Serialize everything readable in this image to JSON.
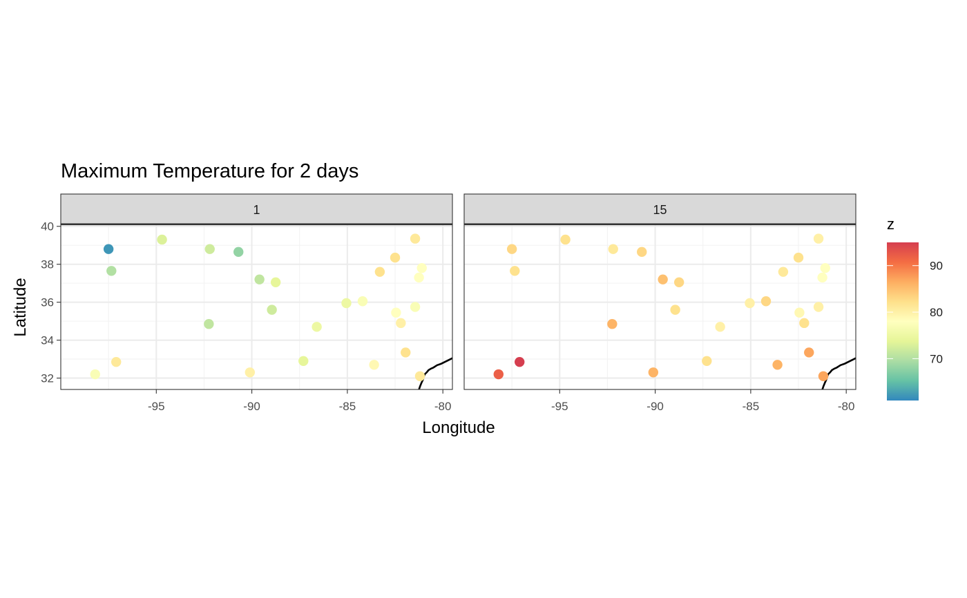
{
  "chart_data": {
    "type": "scatter",
    "title": "Maximum Temperature for 2 days",
    "xlabel": "Longitude",
    "ylabel": "Latitude",
    "xlim": [
      -100,
      -79.5
    ],
    "ylim": [
      31.4,
      40.1
    ],
    "x_ticks": [
      -95,
      -90,
      -85,
      -80
    ],
    "x_tick_labels": [
      "-95",
      "-90",
      "-85",
      "-80"
    ],
    "y_ticks": [
      32,
      34,
      36,
      38,
      40
    ],
    "y_tick_labels": [
      "32",
      "34",
      "36",
      "38",
      "40"
    ],
    "grid": true,
    "legend": {
      "title": "z",
      "position": "right",
      "type": "colorbar",
      "range": [
        61,
        95
      ],
      "ticks": [
        70,
        80,
        90
      ],
      "tick_labels": [
        "70",
        "80",
        "90"
      ],
      "palette": [
        "#3288bd",
        "#66c2a5",
        "#abdda4",
        "#e6f598",
        "#ffffbf",
        "#fee08b",
        "#fdae61",
        "#f46d43",
        "#d53e4f"
      ]
    },
    "coastline": [
      [
        -79.5,
        33.05
      ],
      [
        -79.7,
        32.95
      ],
      [
        -79.9,
        32.85
      ],
      [
        -80.1,
        32.75
      ],
      [
        -80.3,
        32.68
      ],
      [
        -80.5,
        32.55
      ],
      [
        -80.62,
        32.5
      ],
      [
        -80.75,
        32.42
      ],
      [
        -80.85,
        32.3
      ],
      [
        -80.95,
        32.2
      ],
      [
        -81.0,
        32.05
      ],
      [
        -81.05,
        31.9
      ],
      [
        -81.12,
        31.75
      ],
      [
        -81.2,
        31.55
      ],
      [
        -81.25,
        31.4
      ]
    ],
    "panels": [
      {
        "label": "1",
        "points": [
          {
            "lon": -97.5,
            "lat": 38.8,
            "z": 62
          },
          {
            "lon": -94.7,
            "lat": 39.3,
            "z": 73
          },
          {
            "lon": -92.2,
            "lat": 38.8,
            "z": 72
          },
          {
            "lon": -90.7,
            "lat": 38.65,
            "z": 68
          },
          {
            "lon": -97.35,
            "lat": 37.65,
            "z": 70
          },
          {
            "lon": -89.6,
            "lat": 37.2,
            "z": 71
          },
          {
            "lon": -88.75,
            "lat": 37.05,
            "z": 74
          },
          {
            "lon": -88.95,
            "lat": 35.6,
            "z": 72
          },
          {
            "lon": -92.25,
            "lat": 34.85,
            "z": 71
          },
          {
            "lon": -86.6,
            "lat": 34.7,
            "z": 75
          },
          {
            "lon": -85.05,
            "lat": 35.95,
            "z": 75
          },
          {
            "lon": -84.2,
            "lat": 36.05,
            "z": 77
          },
          {
            "lon": -87.3,
            "lat": 32.9,
            "z": 74
          },
          {
            "lon": -90.1,
            "lat": 32.3,
            "z": 80
          },
          {
            "lon": -97.1,
            "lat": 32.85,
            "z": 81
          },
          {
            "lon": -98.2,
            "lat": 32.2,
            "z": 77
          },
          {
            "lon": -83.6,
            "lat": 32.7,
            "z": 79
          },
          {
            "lon": -83.3,
            "lat": 37.6,
            "z": 82
          },
          {
            "lon": -82.5,
            "lat": 38.35,
            "z": 82
          },
          {
            "lon": -81.45,
            "lat": 39.35,
            "z": 81
          },
          {
            "lon": -81.1,
            "lat": 37.8,
            "z": 78
          },
          {
            "lon": -81.25,
            "lat": 37.3,
            "z": 78
          },
          {
            "lon": -82.45,
            "lat": 35.45,
            "z": 78
          },
          {
            "lon": -81.45,
            "lat": 35.75,
            "z": 77
          },
          {
            "lon": -82.2,
            "lat": 34.9,
            "z": 80
          },
          {
            "lon": -81.95,
            "lat": 33.35,
            "z": 82
          },
          {
            "lon": -81.2,
            "lat": 32.1,
            "z": 81
          }
        ]
      },
      {
        "label": "15",
        "points": [
          {
            "lon": -97.5,
            "lat": 38.8,
            "z": 83
          },
          {
            "lon": -94.7,
            "lat": 39.3,
            "z": 82
          },
          {
            "lon": -92.2,
            "lat": 38.8,
            "z": 81
          },
          {
            "lon": -90.7,
            "lat": 38.65,
            "z": 83
          },
          {
            "lon": -97.35,
            "lat": 37.65,
            "z": 82
          },
          {
            "lon": -89.6,
            "lat": 37.2,
            "z": 85
          },
          {
            "lon": -88.75,
            "lat": 37.05,
            "z": 83
          },
          {
            "lon": -88.95,
            "lat": 35.6,
            "z": 82
          },
          {
            "lon": -92.25,
            "lat": 34.85,
            "z": 86
          },
          {
            "lon": -86.6,
            "lat": 34.7,
            "z": 80
          },
          {
            "lon": -85.05,
            "lat": 35.95,
            "z": 80
          },
          {
            "lon": -84.2,
            "lat": 36.05,
            "z": 83
          },
          {
            "lon": -87.3,
            "lat": 32.9,
            "z": 82
          },
          {
            "lon": -90.1,
            "lat": 32.3,
            "z": 86
          },
          {
            "lon": -97.1,
            "lat": 32.85,
            "z": 95
          },
          {
            "lon": -98.2,
            "lat": 32.2,
            "z": 92
          },
          {
            "lon": -83.6,
            "lat": 32.7,
            "z": 86
          },
          {
            "lon": -83.3,
            "lat": 37.6,
            "z": 81
          },
          {
            "lon": -82.5,
            "lat": 38.35,
            "z": 82
          },
          {
            "lon": -81.45,
            "lat": 39.35,
            "z": 80
          },
          {
            "lon": -81.1,
            "lat": 37.8,
            "z": 78
          },
          {
            "lon": -81.25,
            "lat": 37.3,
            "z": 78
          },
          {
            "lon": -82.45,
            "lat": 35.45,
            "z": 79
          },
          {
            "lon": -81.45,
            "lat": 35.75,
            "z": 80
          },
          {
            "lon": -82.2,
            "lat": 34.9,
            "z": 82
          },
          {
            "lon": -81.95,
            "lat": 33.35,
            "z": 87
          },
          {
            "lon": -81.2,
            "lat": 32.1,
            "z": 87
          }
        ]
      }
    ]
  }
}
